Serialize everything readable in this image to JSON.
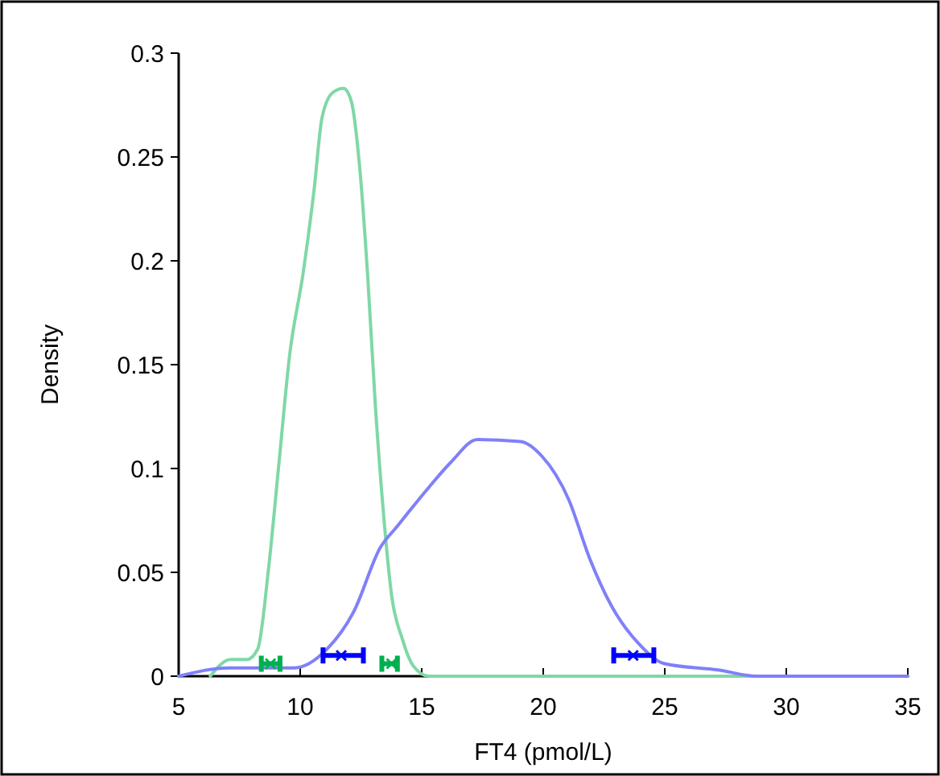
{
  "chart_data": {
    "type": "line",
    "xlabel": "FT4 (pmol/L)",
    "ylabel": "Density",
    "xlim": [
      5,
      35
    ],
    "xticks": [
      5,
      10,
      15,
      20,
      25,
      30,
      35
    ],
    "ylim": [
      0,
      0.3
    ],
    "yticks": [
      0,
      0.05,
      0.1,
      0.15,
      0.2,
      0.25,
      0.3
    ],
    "grid": false,
    "marker": "none",
    "line_style": "solid",
    "series": [
      {
        "color": "#7fd8a6",
        "x": [
          6.3,
          7.14,
          7.8,
          8.25,
          8.7,
          9.13,
          9.57,
          10.12,
          10.56,
          10.9,
          11.34,
          11.78,
          12.1,
          12.44,
          12.77,
          13.1,
          13.43,
          13.76,
          14.2,
          14.65,
          15.3,
          20,
          35
        ],
        "values": [
          0,
          0.008,
          0.008,
          0.013,
          0.052,
          0.103,
          0.155,
          0.194,
          0.233,
          0.269,
          0.281,
          0.283,
          0.277,
          0.246,
          0.194,
          0.129,
          0.078,
          0.039,
          0.018,
          0.005,
          0,
          0,
          0
        ]
      },
      {
        "color": "#8080f8",
        "x": [
          5,
          7.1,
          9.77,
          11.1,
          12.2,
          13.3,
          13.98,
          15.3,
          16.2,
          17.3,
          19.06,
          19.94,
          21.05,
          21.9,
          22.8,
          23.9,
          25.0,
          27.2,
          28.8,
          35
        ],
        "values": [
          0,
          0.004,
          0.004,
          0.013,
          0.031,
          0.062,
          0.072,
          0.091,
          0.103,
          0.114,
          0.113,
          0.106,
          0.085,
          0.057,
          0.034,
          0.016,
          0.006,
          0.003,
          0,
          0
        ]
      },
      {
        "type": "scatter",
        "color": "#00b050",
        "marker": "cross",
        "x": [
          8.78,
          13.76
        ],
        "values": [
          0.006,
          0.006
        ],
        "xerrors": [
          [
            8.4,
            9.17
          ],
          [
            13.36,
            14.0
          ]
        ]
      },
      {
        "type": "scatter",
        "color": "#0000ff",
        "marker": "cross",
        "x": [
          11.69,
          23.7
        ],
        "values": [
          0.01,
          0.01
        ],
        "xerrors": [
          [
            10.94,
            12.6
          ],
          [
            22.9,
            24.55
          ]
        ]
      }
    ]
  }
}
